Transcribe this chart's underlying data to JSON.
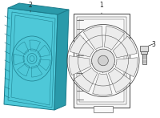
{
  "bg_color": "#ffffff",
  "cyan_fill": "#4ec8d8",
  "cyan_edge": "#1a7a8a",
  "cyan_dark": "#2a9aaa",
  "white_fill": "#f8f8f8",
  "white_edge": "#444444",
  "bolt_fill": "#dddddd",
  "bolt_edge": "#444444",
  "label_color": "#222222",
  "label_fs": 5.5
}
